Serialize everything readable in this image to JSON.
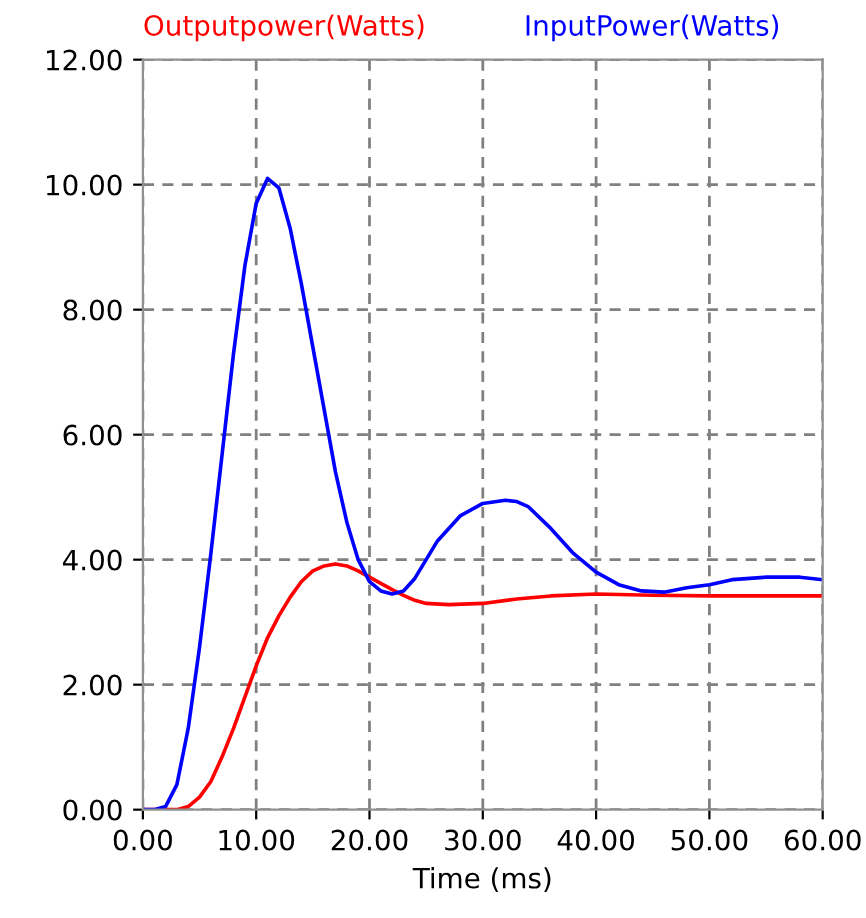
{
  "chart_data": {
    "type": "line",
    "xlabel": "Time (ms)",
    "xlim": [
      0,
      60
    ],
    "ylim": [
      0,
      12
    ],
    "xticks": [
      {
        "value": 0,
        "label": "0.00"
      },
      {
        "value": 10,
        "label": "10.00"
      },
      {
        "value": 20,
        "label": "20.00"
      },
      {
        "value": 30,
        "label": "30.00"
      },
      {
        "value": 40,
        "label": "40.00"
      },
      {
        "value": 50,
        "label": "50.00"
      },
      {
        "value": 60,
        "label": "60.00"
      }
    ],
    "yticks": [
      {
        "value": 0,
        "label": "0.00"
      },
      {
        "value": 2,
        "label": "2.00"
      },
      {
        "value": 4,
        "label": "4.00"
      },
      {
        "value": 6,
        "label": "6.00"
      },
      {
        "value": 8,
        "label": "8.00"
      },
      {
        "value": 10,
        "label": "10.00"
      },
      {
        "value": 12,
        "label": "12.00"
      }
    ],
    "grid": true,
    "legend": "top",
    "marker": "none",
    "line_style": "solid",
    "series": [
      {
        "name": "Outputpower(Watts)",
        "color": "#ff0000",
        "x": [
          0,
          3,
          4,
          5,
          6,
          7,
          8,
          9,
          10,
          11,
          12,
          13,
          14,
          15,
          16,
          17,
          18,
          19,
          20,
          21,
          22,
          23,
          24,
          25,
          27,
          30,
          33,
          36,
          40,
          45,
          50,
          55,
          60
        ],
        "values": [
          0,
          0,
          0.05,
          0.2,
          0.45,
          0.85,
          1.3,
          1.8,
          2.3,
          2.75,
          3.1,
          3.4,
          3.65,
          3.82,
          3.9,
          3.93,
          3.9,
          3.82,
          3.72,
          3.62,
          3.52,
          3.43,
          3.35,
          3.3,
          3.28,
          3.3,
          3.37,
          3.42,
          3.45,
          3.43,
          3.42,
          3.42,
          3.42
        ]
      },
      {
        "name": "InputPower(Watts)",
        "color": "#0000ff",
        "x": [
          0,
          1,
          2,
          3,
          4,
          5,
          6,
          7,
          8,
          9,
          10,
          11,
          12,
          13,
          14,
          15,
          16,
          17,
          18,
          19,
          20,
          21,
          22,
          23,
          24,
          25,
          26,
          28,
          30,
          32,
          33,
          34,
          36,
          38,
          40,
          42,
          44,
          46,
          48,
          50,
          52,
          55,
          58,
          60
        ],
        "values": [
          0,
          0,
          0.05,
          0.4,
          1.3,
          2.6,
          4.1,
          5.7,
          7.3,
          8.7,
          9.7,
          10.1,
          9.95,
          9.3,
          8.4,
          7.4,
          6.4,
          5.4,
          4.6,
          4.0,
          3.65,
          3.5,
          3.45,
          3.5,
          3.7,
          4.0,
          4.3,
          4.7,
          4.9,
          4.95,
          4.93,
          4.85,
          4.5,
          4.1,
          3.8,
          3.6,
          3.5,
          3.48,
          3.55,
          3.6,
          3.68,
          3.72,
          3.72,
          3.68
        ]
      }
    ]
  }
}
